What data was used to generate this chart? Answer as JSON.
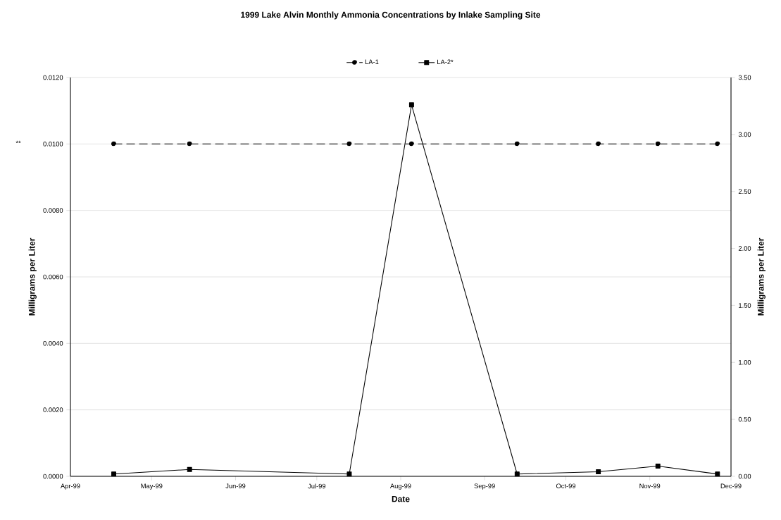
{
  "chart_data": {
    "type": "line",
    "title": "1999 Lake Alvin Monthly Ammonia Concentrations by Inlake Sampling Site",
    "xlabel": "Date",
    "ylabel": "Milligrams per Liter",
    "y2label": "Milligrams per Liter",
    "x": [
      "1999-04-17",
      "1999-05-15",
      "1999-07-13",
      "1999-08-05",
      "1999-09-13",
      "1999-10-13",
      "1999-11-04",
      "1999-11-26"
    ],
    "series": [
      {
        "name": "LA-1",
        "color": "#000000",
        "marker": "circle",
        "line_style": "dashed",
        "values": [
          0.01,
          0.01,
          0.01,
          0.01,
          0.01,
          0.01,
          0.01,
          0.01
        ]
      },
      {
        "name": "LA-2*",
        "color": "#000000",
        "marker": "square",
        "line_style": "solid",
        "axis": "y2",
        "values": [
          0.02,
          0.06,
          0.02,
          3.26,
          0.02,
          0.04,
          0.09,
          0.02
        ]
      }
    ],
    "xlim": [
      "1999-04-01",
      "1999-12-01"
    ],
    "xticks": [
      {
        "value": "1999-04-01",
        "label": "Apr-99"
      },
      {
        "value": "1999-05-01",
        "label": "May-99"
      },
      {
        "value": "1999-06-01",
        "label": "Jun-99"
      },
      {
        "value": "1999-07-01",
        "label": "Jul-99"
      },
      {
        "value": "1999-08-01",
        "label": "Aug-99"
      },
      {
        "value": "1999-09-01",
        "label": "Sep-99"
      },
      {
        "value": "1999-10-01",
        "label": "Oct-99"
      },
      {
        "value": "1999-11-01",
        "label": "Nov-99"
      },
      {
        "value": "1999-12-01",
        "label": "Dec-99"
      }
    ],
    "ylim": [
      0,
      0.012
    ],
    "yticks": [
      {
        "value": 0,
        "label": "0.0000"
      },
      {
        "value": 0.002,
        "label": "0.0020"
      },
      {
        "value": 0.004,
        "label": "0.0040"
      },
      {
        "value": 0.006,
        "label": "0.0060"
      },
      {
        "value": 0.008,
        "label": "0.0080"
      },
      {
        "value": 0.01,
        "label": "0.0100"
      },
      {
        "value": 0.012,
        "label": "0.0120"
      }
    ],
    "y2lim": [
      0,
      3.5
    ],
    "y2ticks": [
      {
        "value": 0,
        "label": "0.00"
      },
      {
        "value": 0.5,
        "label": "0.50"
      },
      {
        "value": 1,
        "label": "1.00"
      },
      {
        "value": 1.5,
        "label": "1.50"
      },
      {
        "value": 2,
        "label": "2.00"
      },
      {
        "value": 2.5,
        "label": "2.50"
      },
      {
        "value": 3,
        "label": "3.00"
      },
      {
        "value": 3.5,
        "label": "3.50"
      }
    ],
    "grid": "y",
    "legend": "top",
    "annotations": [
      "**"
    ]
  }
}
